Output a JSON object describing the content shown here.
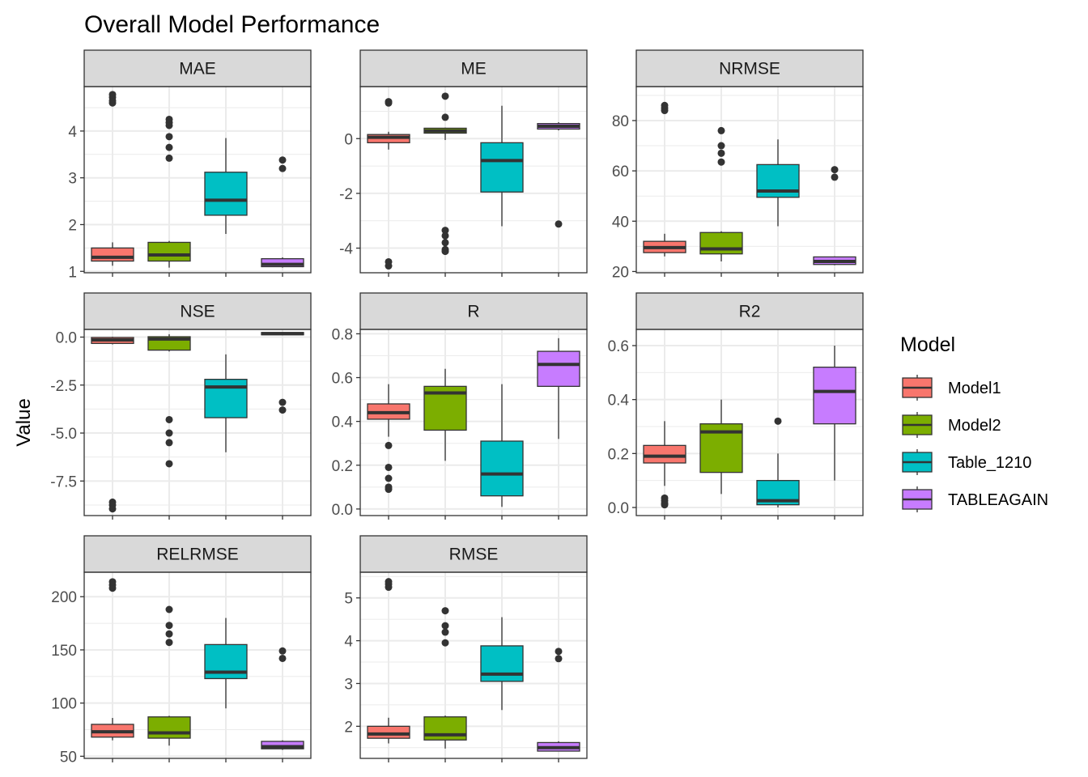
{
  "chart_data": {
    "type": "boxplot",
    "title": "Overall Model Performance",
    "ylabel": "Value",
    "legend": {
      "title": "Model",
      "placement": "right",
      "entries": [
        {
          "name": "Model1",
          "color": "#F8766D"
        },
        {
          "name": "Model2",
          "color": "#7CAE00"
        },
        {
          "name": "Table_1210",
          "color": "#00BFC4"
        },
        {
          "name": "TABLEAGAIN",
          "color": "#C77CFF"
        }
      ]
    },
    "facet_layout": {
      "columns": 3,
      "scales": "free_y",
      "grid": true
    },
    "facets": [
      {
        "metric": "MAE",
        "ylim": [
          0.97,
          4.95
        ],
        "ticks": [
          1,
          2,
          3,
          4
        ],
        "tick_labels": [
          "1",
          "2",
          "3",
          "4"
        ],
        "boxes": [
          {
            "model": "Model1",
            "whisker_low": 1.12,
            "q1": 1.22,
            "median": 1.3,
            "q3": 1.5,
            "whisker_high": 1.62,
            "outliers": [
              4.6,
              4.65,
              4.72,
              4.78
            ]
          },
          {
            "model": "Model2",
            "whisker_low": 1.08,
            "q1": 1.22,
            "median": 1.35,
            "q3": 1.62,
            "whisker_high": 1.65,
            "outliers": [
              3.42,
              3.65,
              3.88,
              4.12,
              4.18,
              4.25
            ]
          },
          {
            "model": "Table_1210",
            "whisker_low": 1.8,
            "q1": 2.2,
            "median": 2.52,
            "q3": 3.12,
            "whisker_high": 3.85,
            "outliers": []
          },
          {
            "model": "TABLEAGAIN",
            "whisker_low": 1.08,
            "q1": 1.1,
            "median": 1.15,
            "q3": 1.27,
            "whisker_high": 1.3,
            "outliers": [
              3.2,
              3.38
            ]
          }
        ]
      },
      {
        "metric": "ME",
        "ylim": [
          -4.9,
          1.9
        ],
        "ticks": [
          -4,
          -2,
          0
        ],
        "tick_labels": [
          "-4",
          "-2",
          "0"
        ],
        "boxes": [
          {
            "model": "Model1",
            "whisker_low": -0.4,
            "q1": -0.15,
            "median": 0.05,
            "q3": 0.15,
            "whisker_high": 0.25,
            "outliers": [
              -4.65,
              -4.5,
              1.3,
              1.35
            ]
          },
          {
            "model": "Model2",
            "whisker_low": -0.05,
            "q1": 0.2,
            "median": 0.28,
            "q3": 0.38,
            "whisker_high": 0.4,
            "outliers": [
              0.78,
              1.55,
              -3.35,
              -3.55,
              -3.8,
              -4.05,
              -4.12
            ]
          },
          {
            "model": "Table_1210",
            "whisker_low": -3.2,
            "q1": -1.95,
            "median": -0.8,
            "q3": -0.15,
            "whisker_high": 1.2,
            "outliers": []
          },
          {
            "model": "TABLEAGAIN",
            "whisker_low": 0.3,
            "q1": 0.35,
            "median": 0.45,
            "q3": 0.55,
            "whisker_high": 0.6,
            "outliers": [
              -3.12
            ]
          }
        ]
      },
      {
        "metric": "NRMSE",
        "ylim": [
          19.5,
          93.5
        ],
        "ticks": [
          20,
          40,
          60,
          80
        ],
        "tick_labels": [
          "20",
          "40",
          "60",
          "80"
        ],
        "boxes": [
          {
            "model": "Model1",
            "whisker_low": 26,
            "q1": 27.5,
            "median": 29.5,
            "q3": 32,
            "whisker_high": 35,
            "outliers": [
              84,
              85,
              86
            ]
          },
          {
            "model": "Model2",
            "whisker_low": 24,
            "q1": 27,
            "median": 29,
            "q3": 35.5,
            "whisker_high": 36,
            "outliers": [
              63.5,
              67,
              70,
              76
            ]
          },
          {
            "model": "Table_1210",
            "whisker_low": 38,
            "q1": 49.5,
            "median": 52,
            "q3": 62.5,
            "whisker_high": 72.5,
            "outliers": []
          },
          {
            "model": "TABLEAGAIN",
            "whisker_low": 22.5,
            "q1": 22.8,
            "median": 24,
            "q3": 25.8,
            "whisker_high": 26,
            "outliers": [
              57.5,
              60.5
            ]
          }
        ]
      },
      {
        "metric": "NSE",
        "ylim": [
          -9.3,
          0.4
        ],
        "ticks": [
          -7.5,
          -5,
          -2.5,
          0
        ],
        "tick_labels": [
          "-7.5",
          "-5.0",
          "-2.5",
          "0.0"
        ],
        "boxes": [
          {
            "model": "Model1",
            "whisker_low": -0.38,
            "q1": -0.33,
            "median": -0.15,
            "q3": -0.02,
            "whisker_high": 0.02,
            "outliers": [
              -8.6,
              -8.75,
              -8.95
            ]
          },
          {
            "model": "Model2",
            "whisker_low": -0.75,
            "q1": -0.68,
            "median": -0.1,
            "q3": 0.02,
            "whisker_high": 0.15,
            "outliers": [
              -4.3,
              -5.0,
              -5.5,
              -6.6
            ]
          },
          {
            "model": "Table_1210",
            "whisker_low": -6.0,
            "q1": -4.2,
            "median": -2.6,
            "q3": -2.2,
            "whisker_high": -0.9,
            "outliers": []
          },
          {
            "model": "TABLEAGAIN",
            "whisker_low": 0.1,
            "q1": 0.12,
            "median": 0.18,
            "q3": 0.24,
            "whisker_high": 0.26,
            "outliers": [
              -3.4,
              -3.8
            ]
          }
        ]
      },
      {
        "metric": "R",
        "ylim": [
          -0.03,
          0.82
        ],
        "ticks": [
          0,
          0.2,
          0.4,
          0.6,
          0.8
        ],
        "tick_labels": [
          "0.0",
          "0.2",
          "0.4",
          "0.6",
          "0.8"
        ],
        "boxes": [
          {
            "model": "Model1",
            "whisker_low": 0.33,
            "q1": 0.41,
            "median": 0.44,
            "q3": 0.48,
            "whisker_high": 0.57,
            "outliers": [
              0.09,
              0.1,
              0.14,
              0.19,
              0.29
            ]
          },
          {
            "model": "Model2",
            "whisker_low": 0.22,
            "q1": 0.36,
            "median": 0.53,
            "q3": 0.56,
            "whisker_high": 0.64,
            "outliers": []
          },
          {
            "model": "Table_1210",
            "whisker_low": 0.01,
            "q1": 0.06,
            "median": 0.16,
            "q3": 0.31,
            "whisker_high": 0.57,
            "outliers": []
          },
          {
            "model": "TABLEAGAIN",
            "whisker_low": 0.32,
            "q1": 0.56,
            "median": 0.66,
            "q3": 0.72,
            "whisker_high": 0.78,
            "outliers": []
          }
        ]
      },
      {
        "metric": "R2",
        "ylim": [
          -0.03,
          0.66
        ],
        "ticks": [
          0,
          0.2,
          0.4,
          0.6
        ],
        "tick_labels": [
          "0.0",
          "0.2",
          "0.4",
          "0.6"
        ],
        "boxes": [
          {
            "model": "Model1",
            "whisker_low": 0.08,
            "q1": 0.165,
            "median": 0.19,
            "q3": 0.23,
            "whisker_high": 0.32,
            "outliers": [
              0.01,
              0.015,
              0.025,
              0.035
            ]
          },
          {
            "model": "Model2",
            "whisker_low": 0.05,
            "q1": 0.13,
            "median": 0.28,
            "q3": 0.31,
            "whisker_high": 0.4,
            "outliers": []
          },
          {
            "model": "Table_1210",
            "whisker_low": 0.0,
            "q1": 0.01,
            "median": 0.025,
            "q3": 0.1,
            "whisker_high": 0.2,
            "outliers": [
              0.32
            ]
          },
          {
            "model": "TABLEAGAIN",
            "whisker_low": 0.1,
            "q1": 0.31,
            "median": 0.43,
            "q3": 0.52,
            "whisker_high": 0.6,
            "outliers": []
          }
        ]
      },
      {
        "metric": "RELRMSE",
        "ylim": [
          48,
          223
        ],
        "ticks": [
          50,
          100,
          150,
          200
        ],
        "tick_labels": [
          "50",
          "100",
          "150",
          "200"
        ],
        "boxes": [
          {
            "model": "Model1",
            "whisker_low": 65,
            "q1": 68,
            "median": 73,
            "q3": 80,
            "whisker_high": 86,
            "outliers": [
              208,
              211,
              214
            ]
          },
          {
            "model": "Model2",
            "whisker_low": 60,
            "q1": 67,
            "median": 72,
            "q3": 87,
            "whisker_high": 88,
            "outliers": [
              157,
              165,
              173,
              188
            ]
          },
          {
            "model": "Table_1210",
            "whisker_low": 95,
            "q1": 123,
            "median": 129,
            "q3": 155,
            "whisker_high": 180,
            "outliers": []
          },
          {
            "model": "TABLEAGAIN",
            "whisker_low": 56,
            "q1": 57,
            "median": 59,
            "q3": 64,
            "whisker_high": 65,
            "outliers": [
              142,
              149
            ]
          }
        ]
      },
      {
        "metric": "RMSE",
        "ylim": [
          1.25,
          5.6
        ],
        "ticks": [
          2,
          3,
          4,
          5
        ],
        "tick_labels": [
          "2",
          "3",
          "4",
          "5"
        ],
        "boxes": [
          {
            "model": "Model1",
            "whisker_low": 1.6,
            "q1": 1.72,
            "median": 1.82,
            "q3": 2.0,
            "whisker_high": 2.2,
            "outliers": [
              5.25,
              5.32,
              5.38
            ]
          },
          {
            "model": "Model2",
            "whisker_low": 1.48,
            "q1": 1.68,
            "median": 1.8,
            "q3": 2.22,
            "whisker_high": 2.25,
            "outliers": [
              3.95,
              4.2,
              4.35,
              4.7
            ]
          },
          {
            "model": "Table_1210",
            "whisker_low": 2.38,
            "q1": 3.05,
            "median": 3.22,
            "q3": 3.88,
            "whisker_high": 4.55,
            "outliers": []
          },
          {
            "model": "TABLEAGAIN",
            "whisker_low": 1.42,
            "q1": 1.42,
            "median": 1.5,
            "q3": 1.62,
            "whisker_high": 1.65,
            "outliers": [
              3.58,
              3.75
            ]
          }
        ]
      }
    ]
  }
}
